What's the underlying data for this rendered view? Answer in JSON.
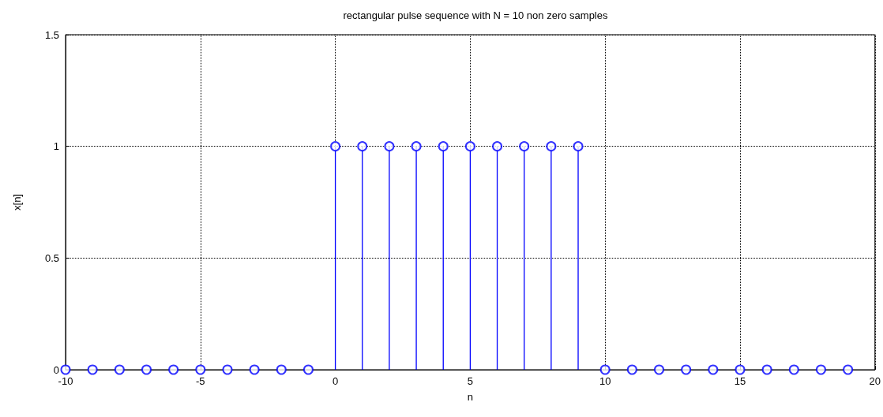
{
  "chart_data": {
    "type": "lollipop",
    "title": "rectangular pulse sequence with N = 10 non zero samples",
    "xlabel": "n",
    "ylabel": "x[n]",
    "x": [
      -10,
      -9,
      -8,
      -7,
      -6,
      -5,
      -4,
      -3,
      -2,
      -1,
      0,
      1,
      2,
      3,
      4,
      5,
      6,
      7,
      8,
      9,
      10,
      11,
      12,
      13,
      14,
      15,
      16,
      17,
      18,
      19
    ],
    "series": [
      {
        "color": "#0000ff",
        "values": [
          0,
          0,
          0,
          0,
          0,
          0,
          0,
          0,
          0,
          0,
          1,
          1,
          1,
          1,
          1,
          1,
          1,
          1,
          1,
          1,
          0,
          0,
          0,
          0,
          0,
          0,
          0,
          0,
          0,
          0
        ]
      }
    ],
    "xlim": [
      -10,
      20
    ],
    "xticks": [
      -10,
      -5,
      0,
      5,
      10,
      15,
      20
    ],
    "ylim": [
      0,
      1.5
    ],
    "yticks": [
      0,
      0.5,
      1,
      1.5
    ],
    "grid": true,
    "marker": "circle",
    "line_style": "solid"
  }
}
